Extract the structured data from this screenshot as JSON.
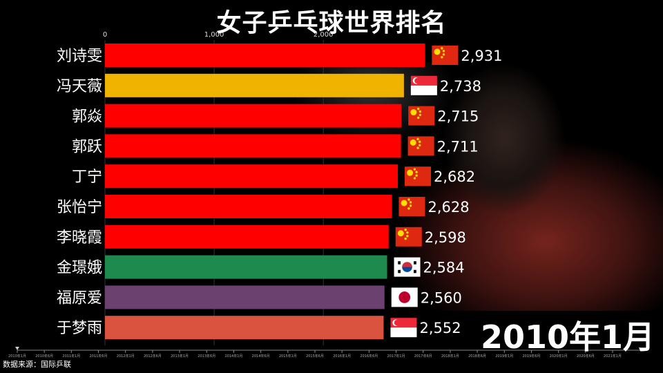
{
  "title": "女子乒乓球世界排名",
  "date_label": "2010年1月",
  "source": "数据来源：国际乒联",
  "chart_data": {
    "type": "bar",
    "orientation": "horizontal",
    "title": "女子乒乓球世界排名",
    "xlim": [
      0,
      3050
    ],
    "x_ticks": [
      0,
      1000,
      2000
    ],
    "x_tick_labels": [
      "0",
      "1,000",
      "2,000"
    ],
    "categories": [
      "刘诗雯",
      "冯天薇",
      "郭焱",
      "郭跃",
      "丁宁",
      "张怡宁",
      "李晓霞",
      "金璟娥",
      "福原爱",
      "于梦雨"
    ],
    "values": [
      2931,
      2738,
      2715,
      2711,
      2682,
      2628,
      2598,
      2584,
      2560,
      2552
    ],
    "value_labels": [
      "2,931",
      "2,738",
      "2,715",
      "2,711",
      "2,682",
      "2,628",
      "2,598",
      "2,584",
      "2,560",
      "2,552"
    ],
    "flags": [
      "china-flag-icon",
      "singapore-flag-icon",
      "china-flag-icon",
      "china-flag-icon",
      "china-flag-icon",
      "china-flag-icon",
      "china-flag-icon",
      "korea-flag-icon",
      "japan-flag-icon",
      "singapore-flag-icon"
    ],
    "colors": [
      "#ff0000",
      "#f0b400",
      "#ff0000",
      "#ff0000",
      "#ff0000",
      "#ff0000",
      "#ff0000",
      "#1e8a4e",
      "#6b4170",
      "#d9533f"
    ],
    "timeline_labels": [
      "2010年1月",
      "2010年6月",
      "2011年1月",
      "2011年6月",
      "2012年1月",
      "2012年6月",
      "2013年1月",
      "2013年6月",
      "2014年1月",
      "2014年6月",
      "2015年1月",
      "2015年6月",
      "2016年1月",
      "2016年6月",
      "2017年1月",
      "2017年6月",
      "2018年1月",
      "2018年6月",
      "2019年1月",
      "2019年6月",
      "2020年1月",
      "2020年6月",
      "2021年1月"
    ],
    "timeline_progress": 0
  }
}
